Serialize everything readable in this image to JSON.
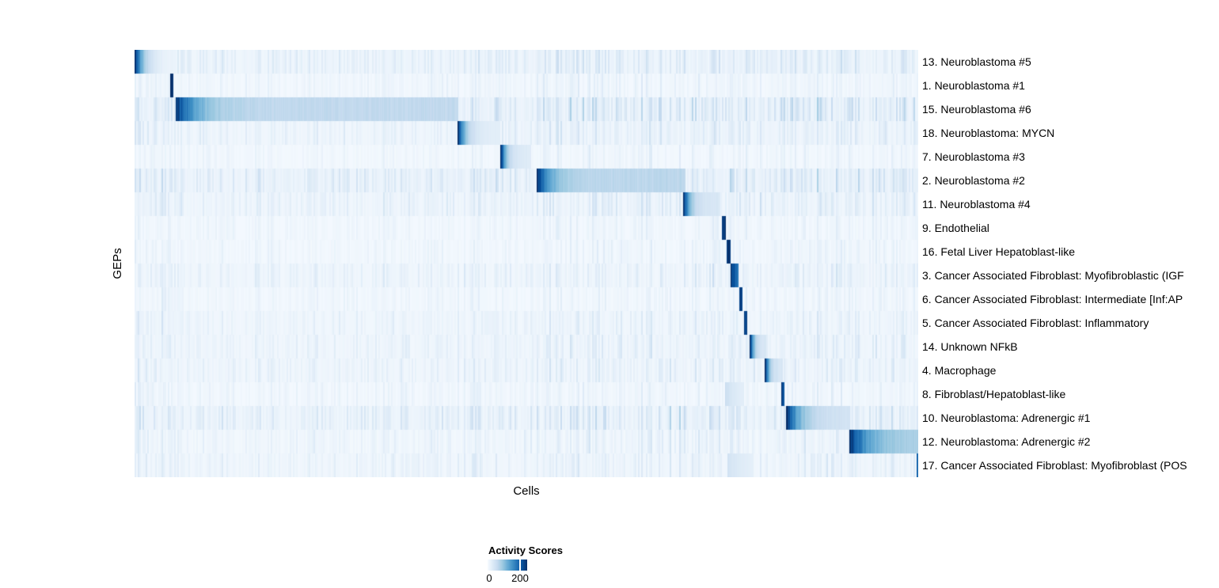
{
  "axes": {
    "x_label": "Cells",
    "y_label": "GEPs"
  },
  "legend": {
    "title": "Activity Scores",
    "min_label": "0",
    "max_label": "200",
    "tick_fraction": 0.82,
    "color_low": "#f7fbff",
    "color_high": "#08306b"
  },
  "chart_data": {
    "type": "heatmap",
    "title": "",
    "xlabel": "Cells",
    "ylabel": "GEPs",
    "colormap": "Blues",
    "colormap_stops": [
      "#f7fbff",
      "#deebf7",
      "#c6dbef",
      "#9ecae1",
      "#6baed6",
      "#4292c6",
      "#2171b5",
      "#08519c",
      "#08306b"
    ],
    "colorbar": {
      "title": "Activity Scores",
      "tick_labels": [
        "0",
        "200"
      ],
      "tick_positions": [
        0.0,
        0.82
      ],
      "value_at_tick": [
        0,
        200
      ]
    },
    "x_axis": {
      "label": "Cells",
      "ticks_shown": false
    },
    "n_rows": 18,
    "description": "Diagonal blocks of high activity: cells (columns) are ordered by their assigned GEP (rows). Block x-extents are fractions of heatmap width; intensity 1.0 = activity ~235 (dark navy), profile fades left-to-right as end+(start-end)*exp(-k*u).",
    "rows": [
      {
        "label": "13. Neuroblastoma #5",
        "tint": 0.9,
        "noise": 0.7,
        "blocks": [
          {
            "x0": 0.0,
            "x1": 0.0455,
            "start": 1.0,
            "end": 0.04,
            "k": 4
          }
        ]
      },
      {
        "label": "1. Neuroblastoma #1",
        "tint": 0.5,
        "noise": 0.4,
        "blocks": [
          {
            "x0": 0.0455,
            "x1": 0.0487,
            "start": 0.98,
            "end": 0.98,
            "k": 0
          }
        ]
      },
      {
        "label": "15. Neuroblastoma #6",
        "tint": 1.0,
        "noise": 1.0,
        "blocks": [
          {
            "x0": 0.0526,
            "x1": 0.4125,
            "start": 1.0,
            "end": 0.26,
            "k": 14
          }
        ]
      },
      {
        "label": "18. Neuroblastoma: MYCN",
        "tint": 0.8,
        "noise": 0.6,
        "blocks": [
          {
            "x0": 0.4125,
            "x1": 0.4661,
            "start": 1.0,
            "end": 0.1,
            "k": 6
          }
        ]
      },
      {
        "label": "7. Neuroblastoma #3",
        "tint": 0.45,
        "noise": 0.35,
        "blocks": [
          {
            "x0": 0.4672,
            "x1": 0.5056,
            "start": 1.0,
            "end": 0.12,
            "k": 6
          }
        ]
      },
      {
        "label": "2. Neuroblastoma #2",
        "tint": 1.0,
        "noise": 0.95,
        "blocks": [
          {
            "x0": 0.5137,
            "x1": 0.7028,
            "start": 1.0,
            "end": 0.28,
            "k": 12
          }
        ]
      },
      {
        "label": "11. Neuroblastoma #4",
        "tint": 0.8,
        "noise": 0.65,
        "blocks": [
          {
            "x0": 0.7008,
            "x1": 0.7463,
            "start": 1.0,
            "end": 0.15,
            "k": 6
          }
        ]
      },
      {
        "label": "9. Endothelial",
        "tint": 0.5,
        "noise": 0.35,
        "blocks": [
          {
            "x0": 0.7495,
            "x1": 0.7536,
            "start": 0.95,
            "end": 0.3,
            "k": 2
          }
        ]
      },
      {
        "label": "16. Fetal Liver Hepatoblast-like",
        "tint": 0.5,
        "noise": 0.35,
        "blocks": [
          {
            "x0": 0.7556,
            "x1": 0.7599,
            "start": 0.95,
            "end": 0.5,
            "k": 1
          }
        ]
      },
      {
        "label": "3. Cancer Associated Fibroblast: Myofibroblastic (IGF",
        "tint": 0.7,
        "noise": 0.55,
        "blocks": [
          {
            "x0": 0.7615,
            "x1": 0.7706,
            "start": 0.95,
            "end": 0.65,
            "k": 1.5
          }
        ]
      },
      {
        "label": "6. Cancer Associated Fibroblast: Intermediate [Inf:AP",
        "tint": 0.5,
        "noise": 0.35,
        "blocks": [
          {
            "x0": 0.7726,
            "x1": 0.7757,
            "start": 0.95,
            "end": 0.95,
            "k": 0
          }
        ]
      },
      {
        "label": "5. Cancer Associated Fibroblast: Inflammatory",
        "tint": 0.65,
        "noise": 0.5,
        "blocks": [
          {
            "x0": 0.7787,
            "x1": 0.7818,
            "start": 0.92,
            "end": 0.92,
            "k": 0
          }
        ]
      },
      {
        "label": "14. Unknown NFkB",
        "tint": 0.7,
        "noise": 0.55,
        "blocks": [
          {
            "x0": 0.7857,
            "x1": 0.806,
            "start": 1.0,
            "end": 0.15,
            "k": 5
          }
        ]
      },
      {
        "label": "4. Macrophage",
        "tint": 0.7,
        "noise": 0.55,
        "blocks": [
          {
            "x0": 0.805,
            "x1": 0.8263,
            "start": 1.0,
            "end": 0.15,
            "k": 5
          }
        ]
      },
      {
        "label": "8. Fibroblast/Hepatoblast-like",
        "tint": 0.5,
        "noise": 0.4,
        "blocks": [
          {
            "x0": 0.8253,
            "x1": 0.8283,
            "start": 0.92,
            "end": 0.92,
            "k": 0
          },
          {
            "x0": 0.7536,
            "x1": 0.7777,
            "start": 0.22,
            "end": 0.08,
            "k": 2
          }
        ]
      },
      {
        "label": "10. Neuroblastoma: Adrenergic #1",
        "tint": 0.9,
        "noise": 0.85,
        "blocks": [
          {
            "x0": 0.8323,
            "x1": 0.913,
            "start": 1.0,
            "end": 0.18,
            "k": 5
          }
        ]
      },
      {
        "label": "12. Neuroblastoma: Adrenergic #2",
        "tint": 0.55,
        "noise": 0.55,
        "blocks": [
          {
            "x0": 0.913,
            "x1": 1.0,
            "start": 1.0,
            "end": 0.32,
            "k": 4
          }
        ]
      },
      {
        "label": "17. Cancer Associated Fibroblast: Myofibroblast (POS",
        "tint": 0.65,
        "noise": 0.5,
        "blocks": [
          {
            "x0": 0.998,
            "x1": 1.0,
            "start": 0.78,
            "end": 0.78,
            "k": 0
          },
          {
            "x0": 0.757,
            "x1": 0.789,
            "start": 0.18,
            "end": 0.07,
            "k": 1.5
          }
        ]
      }
    ],
    "column_group_noise": [
      {
        "x": 0.0,
        "amp": 0.85
      },
      {
        "x": 0.046,
        "amp": 0.45
      },
      {
        "x": 0.053,
        "amp": 0.55
      },
      {
        "x": 0.412,
        "amp": 0.7
      },
      {
        "x": 0.466,
        "amp": 0.6
      },
      {
        "x": 0.506,
        "amp": 0.6
      },
      {
        "x": 0.514,
        "amp": 0.95
      },
      {
        "x": 0.703,
        "amp": 0.9
      },
      {
        "x": 0.75,
        "amp": 0.85
      },
      {
        "x": 0.83,
        "amp": 0.8
      },
      {
        "x": 0.913,
        "amp": 0.75
      }
    ]
  }
}
